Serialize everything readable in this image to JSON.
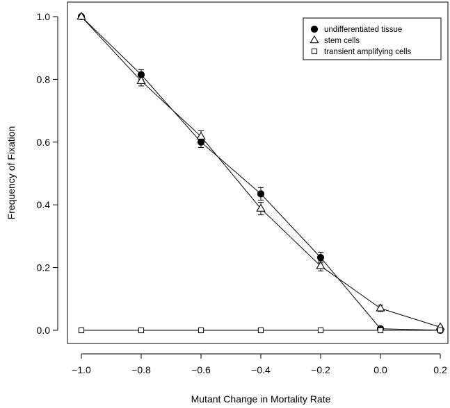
{
  "chart_data": {
    "type": "line",
    "title": "",
    "xlabel": "Mutant Change in Mortality Rate",
    "ylabel": "Frequency of Fixation",
    "xlim": [
      -1.0,
      0.2
    ],
    "ylim": [
      0.0,
      1.0
    ],
    "xticks": [
      -1.0,
      -0.8,
      -0.6,
      -0.4,
      -0.2,
      0.0,
      0.2
    ],
    "xtick_labels": [
      "−1.0",
      "−0.8",
      "−0.6",
      "−0.4",
      "−0.2",
      "0.0",
      "0.2"
    ],
    "yticks": [
      0.0,
      0.2,
      0.4,
      0.6,
      0.8,
      1.0
    ],
    "ytick_labels": [
      "0.0",
      "0.2",
      "0.4",
      "0.6",
      "0.8",
      "1.0"
    ],
    "grid": false,
    "legend_position": "top-right",
    "x": [
      -1.0,
      -0.8,
      -0.6,
      -0.4,
      -0.2,
      0.0,
      0.2
    ],
    "series": [
      {
        "name": "undifferentiated tissue",
        "marker": "filled-circle",
        "values": [
          1.0,
          0.815,
          0.6,
          0.435,
          0.232,
          0.005,
          0.0
        ],
        "errors": [
          0.0,
          0.016,
          0.017,
          0.02,
          0.017,
          0.002,
          0.0
        ]
      },
      {
        "name": "stem cells",
        "marker": "open-triangle",
        "values": [
          1.0,
          0.795,
          0.618,
          0.388,
          0.205,
          0.07,
          0.01
        ],
        "errors": [
          0.0,
          0.016,
          0.018,
          0.02,
          0.016,
          0.01,
          0.003
        ]
      },
      {
        "name": "transient amplifying cells",
        "marker": "open-square",
        "values": [
          0.0,
          0.0,
          0.0,
          0.0,
          0.0,
          0.0,
          0.0
        ],
        "errors": [
          0,
          0,
          0,
          0,
          0,
          0,
          0
        ]
      }
    ]
  }
}
